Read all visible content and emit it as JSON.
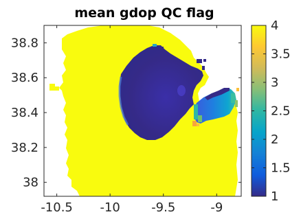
{
  "chart_data": {
    "type": "heatmap",
    "title": "mean gdop QC flag",
    "xlabel": "",
    "ylabel": "",
    "xlim": [
      -10.62,
      -8.77
    ],
    "ylim": [
      37.92,
      38.9
    ],
    "xticks": [
      -10.5,
      -10,
      -9.5,
      -9
    ],
    "xtick_labels": [
      "-10.5",
      "-10",
      "-9.5",
      "-9"
    ],
    "yticks": [
      38.0,
      38.2,
      38.4,
      38.6,
      38.8
    ],
    "ytick_labels": [
      "38",
      "38.2",
      "38.4",
      "38.6",
      "38.8"
    ],
    "colorbar": {
      "min": 1,
      "max": 4,
      "ticks": [
        1,
        1.5,
        2,
        2.5,
        3,
        3.5,
        4
      ],
      "tick_labels": [
        "1",
        "1.5",
        "2",
        "2.5",
        "3",
        "3.5",
        "4"
      ],
      "colormap": "parula"
    },
    "colormap_stops": [
      "#352a87",
      "#0f5cdd",
      "#1481d6",
      "#06a4ca",
      "#2eb7a4",
      "#87bf77",
      "#d1bb59",
      "#fec832",
      "#f9fb0e"
    ],
    "regions": [
      {
        "label": "coverage",
        "value": 4.0
      },
      {
        "label": "central low-flag zone",
        "value": 1.0
      },
      {
        "label": "eastern gradient zone",
        "value_range": [
          1.0,
          3.6
        ]
      }
    ],
    "grid": false,
    "legend": "none"
  }
}
